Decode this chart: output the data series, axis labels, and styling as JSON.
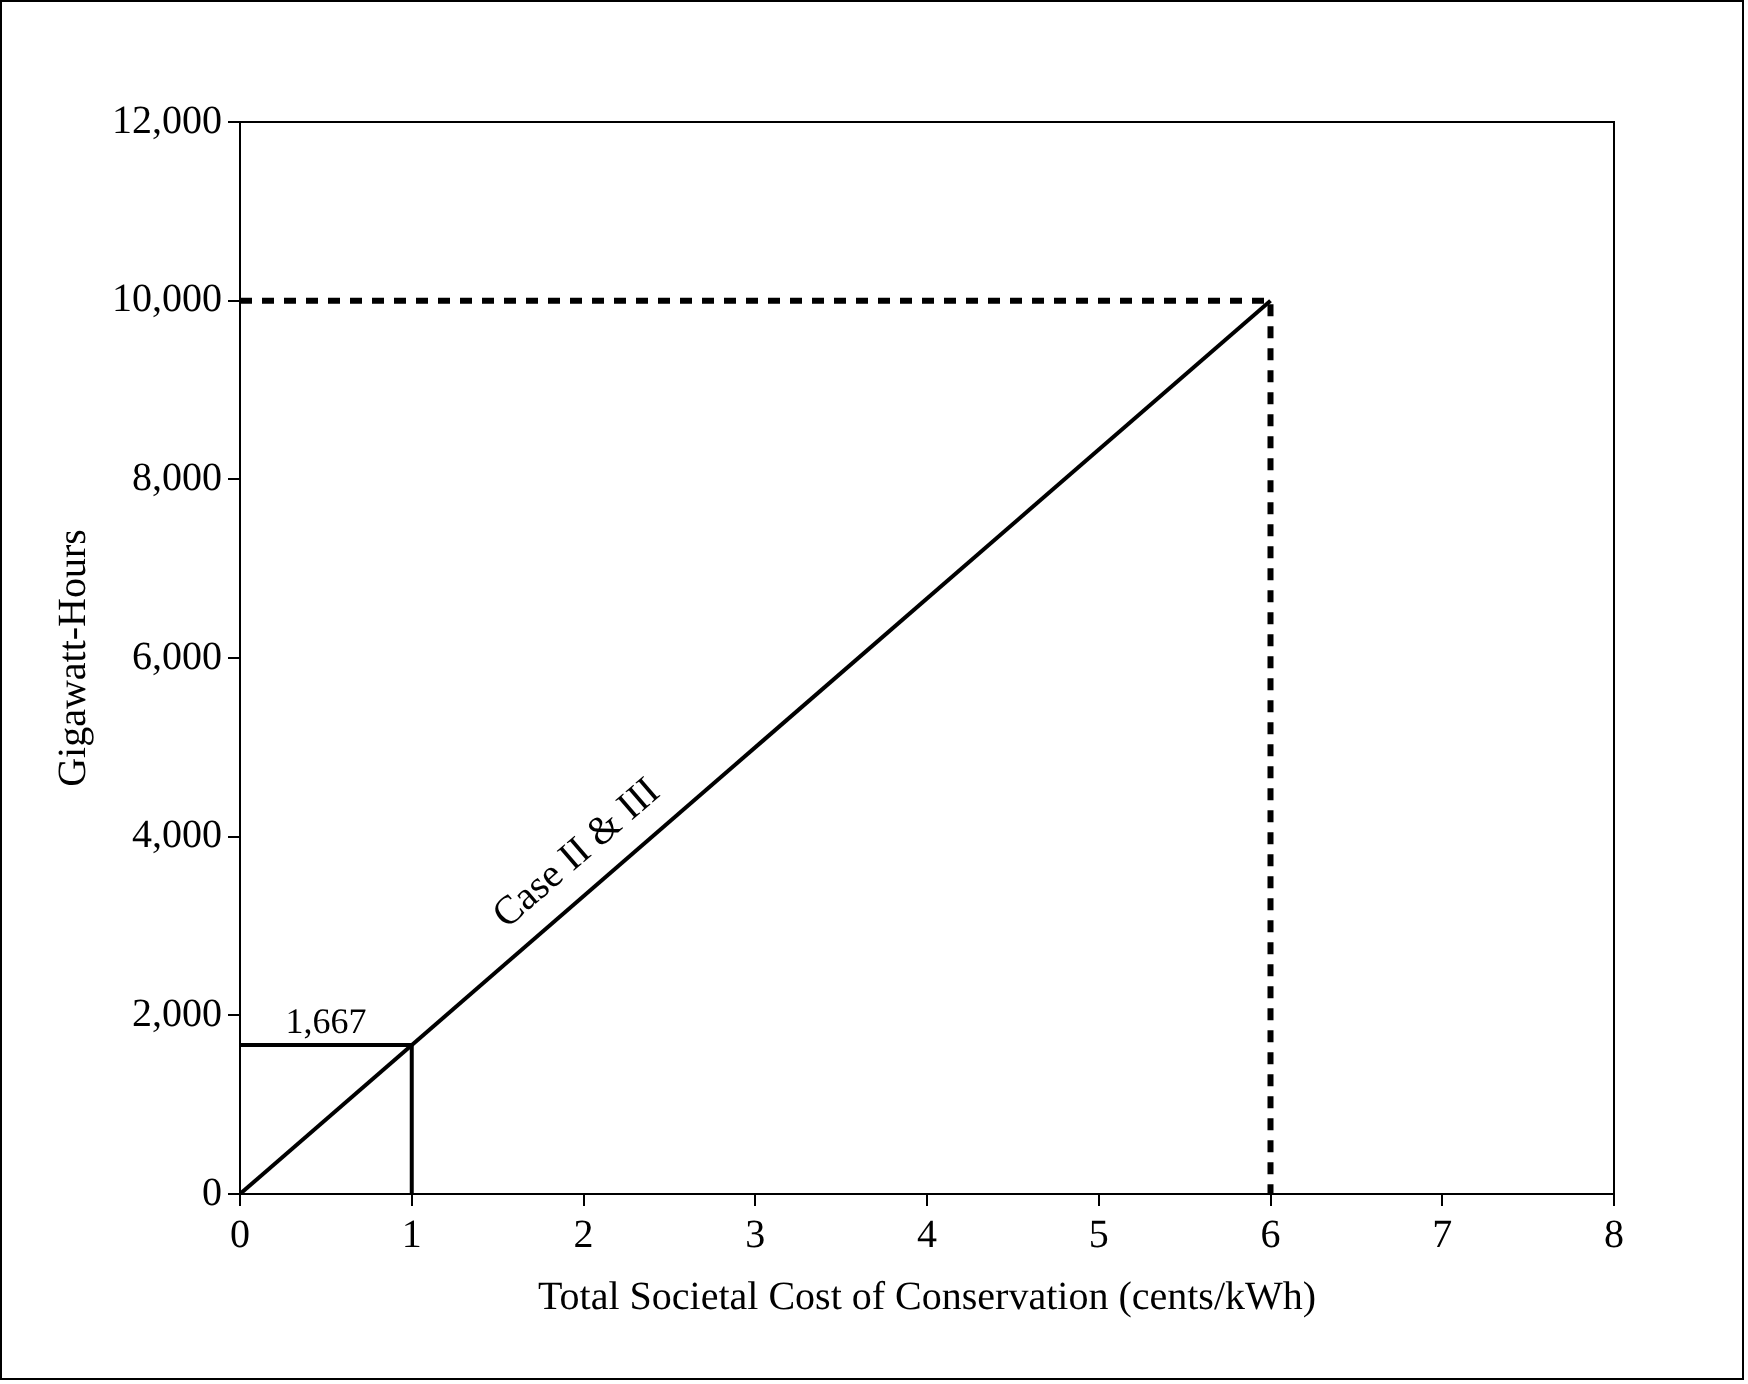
{
  "chart_data": {
    "type": "line",
    "xlabel": "Total Societal Cost of Conservation (cents/kWh)",
    "ylabel": "Gigawatt-Hours",
    "xlim": [
      0,
      8
    ],
    "xticks": [
      0,
      1,
      2,
      3,
      4,
      5,
      6,
      7,
      8
    ],
    "ylim": [
      0,
      12000
    ],
    "yticks": [
      0,
      {
        "value": 2000,
        "label": "2,000"
      },
      {
        "value": 4000,
        "label": "4,000"
      },
      {
        "value": 6000,
        "label": "6,000"
      },
      {
        "value": 8000,
        "label": "8,000"
      },
      {
        "value": 10000,
        "label": "10,000"
      },
      {
        "value": 12000,
        "label": "12,000"
      }
    ],
    "grid": false,
    "legend": false,
    "marker": "none",
    "series": [
      {
        "name": "Case II & III",
        "color": "#000000",
        "x": [
          0,
          6
        ],
        "values": [
          0,
          10000
        ],
        "line_style": "solid"
      },
      {
        "color": "#000000",
        "x": [
          0,
          1,
          1
        ],
        "values": [
          1667,
          1667,
          0
        ],
        "line_style": "solid"
      },
      {
        "color": "#000000",
        "x": [
          0,
          6,
          6
        ],
        "values": [
          10000,
          10000,
          0
        ],
        "line_style": "dashed"
      }
    ],
    "annotations": [
      {
        "text": "1,667",
        "x": 0.5,
        "y": 1667
      }
    ]
  }
}
